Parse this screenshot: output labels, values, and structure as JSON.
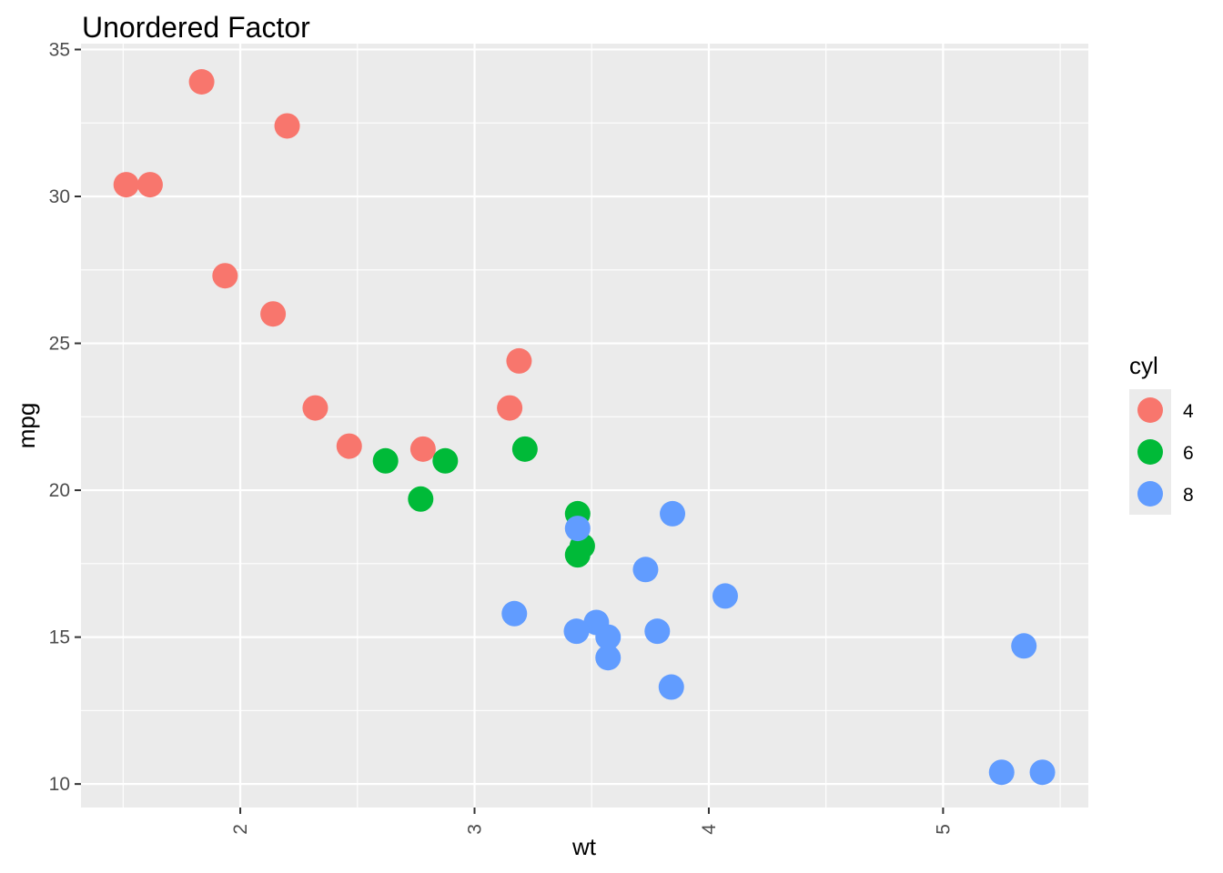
{
  "chart_data": {
    "type": "scatter",
    "title": "Unordered Factor",
    "xlabel": "wt",
    "ylabel": "mpg",
    "xlim": [
      1.32,
      5.62
    ],
    "ylim": [
      9.2,
      35.2
    ],
    "x_ticks": [
      2,
      3,
      4,
      5
    ],
    "x_minor": [
      1.5,
      2.5,
      3.5,
      4.5,
      5.5
    ],
    "y_ticks": [
      10,
      15,
      20,
      25,
      30,
      35
    ],
    "y_minor": [
      12.5,
      17.5,
      22.5,
      27.5,
      32.5
    ],
    "grid": true,
    "legend": {
      "title": "cyl",
      "position": "right"
    },
    "series": [
      {
        "name": "4",
        "color": "#F8766D",
        "x": [
          2.32,
          3.19,
          3.15,
          2.2,
          1.615,
          1.835,
          2.465,
          1.935,
          2.14,
          1.513,
          2.78
        ],
        "y": [
          22.8,
          24.4,
          22.8,
          32.4,
          30.4,
          33.9,
          21.5,
          27.3,
          26.0,
          30.4,
          21.4
        ]
      },
      {
        "name": "6",
        "color": "#00BA38",
        "x": [
          2.62,
          2.875,
          3.215,
          3.46,
          3.44,
          3.44,
          2.77
        ],
        "y": [
          21.0,
          21.0,
          21.4,
          18.1,
          19.2,
          17.8,
          19.7
        ]
      },
      {
        "name": "8",
        "color": "#619CFF",
        "x": [
          3.44,
          3.57,
          4.07,
          3.73,
          3.78,
          5.25,
          5.424,
          5.345,
          3.52,
          3.435,
          3.84,
          3.845,
          3.17,
          3.57
        ],
        "y": [
          18.7,
          14.3,
          16.4,
          17.3,
          15.2,
          10.4,
          10.4,
          14.7,
          15.5,
          15.2,
          13.3,
          19.2,
          15.8,
          15.0
        ]
      }
    ]
  }
}
